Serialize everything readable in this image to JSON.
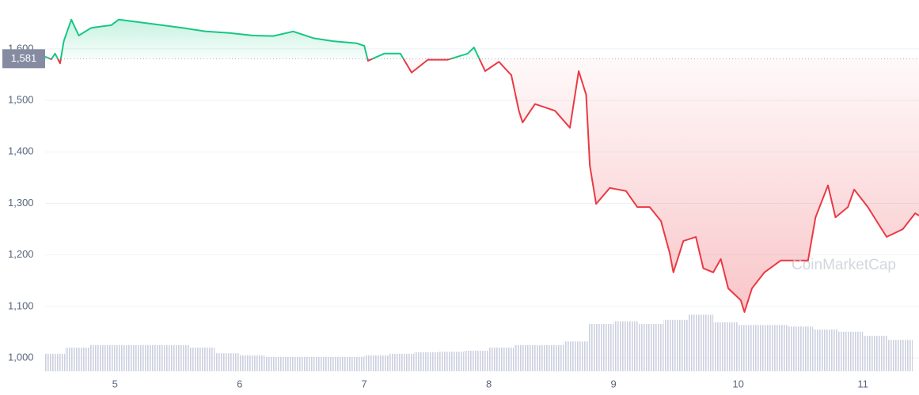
{
  "chart_data": {
    "type": "line",
    "watermark": "CoinMarketCap",
    "x": [
      4.44,
      4.49,
      4.52,
      4.56,
      4.59,
      4.65,
      4.71,
      4.81,
      4.97,
      5.03,
      5.19,
      5.38,
      5.54,
      5.73,
      5.92,
      6.11,
      6.27,
      6.43,
      6.59,
      6.75,
      6.94,
      7.0,
      7.03,
      7.16,
      7.29,
      7.38,
      7.51,
      7.67,
      7.83,
      7.88,
      7.97,
      8.08,
      8.18,
      8.24,
      8.27,
      8.37,
      8.53,
      8.65,
      8.72,
      8.78,
      8.81,
      8.86,
      8.97,
      9.1,
      9.19,
      9.29,
      9.38,
      9.45,
      9.48,
      9.56,
      9.66,
      9.72,
      9.8,
      9.86,
      9.92,
      10.02,
      10.05,
      10.11,
      10.21,
      10.34,
      10.46,
      10.56,
      10.62,
      10.72,
      10.78,
      10.88,
      10.93,
      11.04,
      11.13,
      11.19,
      11.32,
      11.42,
      11.45
    ],
    "values": [
      1585,
      1580,
      1591,
      1572,
      1615,
      1657,
      1626,
      1641,
      1646,
      1657,
      1652,
      1646,
      1641,
      1634,
      1631,
      1626,
      1625,
      1634,
      1621,
      1615,
      1611,
      1606,
      1577,
      1591,
      1591,
      1554,
      1579,
      1579,
      1591,
      1603,
      1557,
      1575,
      1549,
      1480,
      1457,
      1493,
      1480,
      1447,
      1557,
      1511,
      1373,
      1299,
      1330,
      1324,
      1293,
      1293,
      1266,
      1204,
      1166,
      1227,
      1235,
      1174,
      1166,
      1192,
      1135,
      1112,
      1089,
      1135,
      1166,
      1189,
      1189,
      1189,
      1273,
      1335,
      1273,
      1293,
      1327,
      1293,
      1258,
      1235,
      1250,
      1281,
      1276
    ],
    "baseline": {
      "value": 1581,
      "label": "1,581"
    },
    "up_color": "#16c784",
    "down_color": "#ea3943",
    "volume": {
      "color": "#c3c8d9",
      "x": [
        4.5,
        4.7,
        4.9,
        5.1,
        5.3,
        5.5,
        5.7,
        5.9,
        6.1,
        6.3,
        6.5,
        6.7,
        6.9,
        7.1,
        7.3,
        7.5,
        7.7,
        7.9,
        8.1,
        8.3,
        8.5,
        8.7,
        8.9,
        9.1,
        9.3,
        9.5,
        9.7,
        9.9,
        10.1,
        10.3,
        10.5,
        10.7,
        10.9,
        11.1,
        11.3
      ],
      "values": [
        1008,
        1020,
        1025,
        1025,
        1025,
        1025,
        1020,
        1009,
        1005,
        1002,
        1002,
        1002,
        1002,
        1005,
        1008,
        1011,
        1012,
        1014,
        1020,
        1025,
        1025,
        1032,
        1066,
        1071,
        1066,
        1074,
        1084,
        1069,
        1064,
        1064,
        1061,
        1055,
        1051,
        1043,
        1035
      ]
    },
    "xlim": [
      4.44,
      11.45
    ],
    "xticks": [
      5,
      6,
      7,
      8,
      9,
      10,
      11
    ],
    "ylim": [
      974,
      1695
    ],
    "yticks": [
      {
        "value": 1000,
        "label": "1,000"
      },
      {
        "value": 1100,
        "label": "1,100"
      },
      {
        "value": 1200,
        "label": "1,200"
      },
      {
        "value": 1300,
        "label": "1,300"
      },
      {
        "value": 1400,
        "label": "1,400"
      },
      {
        "value": 1500,
        "label": "1,500"
      },
      {
        "value": 1600,
        "label": "1,600"
      }
    ],
    "grid": true
  }
}
